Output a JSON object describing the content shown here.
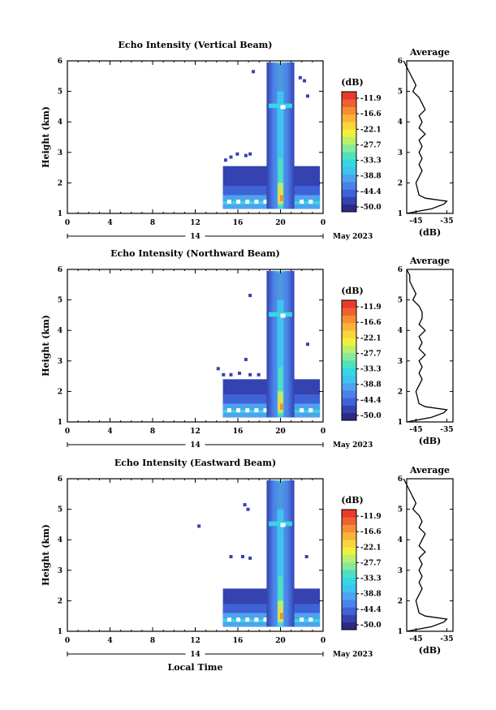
{
  "colors": {
    "colorbar": [
      "#2c2a86",
      "#3443b0",
      "#3f62d6",
      "#4c80ea",
      "#4ea3f0",
      "#3fc3ef",
      "#35d7e2",
      "#4fe0c0",
      "#86ea9a",
      "#bcef6a",
      "#eff03e",
      "#fad43c",
      "#f8b338",
      "#f48e34",
      "#f06030",
      "#e93b2b"
    ],
    "line": "#000000"
  },
  "colorbar": {
    "unit": "(dB)",
    "labels": [
      "-11.9",
      "-16.6",
      "-22.1",
      "-27.7",
      "-33.3",
      "-38.8",
      "-44.4",
      "-50.0"
    ]
  },
  "chart_data": [
    {
      "type": "heatmap",
      "title": "Echo Intensity (Vertical Beam)",
      "ylabel": "Height (km)",
      "xlabel": "",
      "x_ticks": [
        "0",
        "4",
        "8",
        "12",
        "16",
        "20",
        "0"
      ],
      "y_ticks": [
        "1",
        "2",
        "3",
        "4",
        "5",
        "6"
      ],
      "ylim": [
        1,
        6
      ],
      "day_label": "14",
      "month_label": "May 2023",
      "profile": {
        "title": "Average",
        "xlabel": "(dB)",
        "x_ticks": [
          "-45",
          "-35"
        ],
        "y_ticks": [
          "1",
          "2",
          "3",
          "4",
          "5",
          "6"
        ],
        "height_km": [
          1.0,
          1.15,
          1.3,
          1.4,
          1.5,
          1.6,
          1.8,
          2.0,
          2.2,
          2.4,
          2.6,
          2.8,
          3.0,
          3.2,
          3.4,
          3.6,
          3.8,
          4.0,
          4.2,
          4.4,
          4.6,
          4.8,
          5.0,
          5.2,
          5.4,
          5.6,
          5.8,
          6.0
        ],
        "db": [
          -48,
          -40,
          -36,
          -35,
          -42,
          -44,
          -44.5,
          -45,
          -44,
          -43,
          -44,
          -43,
          -44,
          -43,
          -44,
          -42,
          -44,
          -43,
          -44,
          -42,
          -43,
          -44,
          -46,
          -45,
          -46,
          -47,
          -48,
          -49
        ]
      }
    },
    {
      "type": "heatmap",
      "title": "Echo Intensity (Northward Beam)",
      "ylabel": "Height (km)",
      "xlabel": "",
      "x_ticks": [
        "0",
        "4",
        "8",
        "12",
        "16",
        "20",
        "0"
      ],
      "y_ticks": [
        "1",
        "2",
        "3",
        "4",
        "5",
        "6"
      ],
      "ylim": [
        1,
        6
      ],
      "day_label": "14",
      "month_label": "May 2023",
      "profile": {
        "title": "Average",
        "xlabel": "(dB)",
        "x_ticks": [
          "-45",
          "-35"
        ],
        "y_ticks": [
          "1",
          "2",
          "3",
          "4",
          "5",
          "6"
        ],
        "height_km": [
          1.0,
          1.15,
          1.3,
          1.4,
          1.5,
          1.6,
          1.8,
          2.0,
          2.2,
          2.4,
          2.6,
          2.8,
          3.0,
          3.2,
          3.4,
          3.6,
          3.8,
          4.0,
          4.2,
          4.4,
          4.6,
          4.8,
          5.0,
          5.2,
          5.4,
          5.6,
          5.8,
          6.0
        ],
        "db": [
          -48,
          -40,
          -36,
          -35,
          -42,
          -44,
          -44.5,
          -45,
          -44,
          -43,
          -44,
          -43,
          -44,
          -42,
          -44,
          -43,
          -44,
          -42,
          -44,
          -43,
          -43,
          -44,
          -46,
          -45,
          -46,
          -47,
          -47,
          -48
        ]
      }
    },
    {
      "type": "heatmap",
      "title": "Echo Intensity (Eastward Beam)",
      "ylabel": "Height (km)",
      "xlabel": "Local Time",
      "x_ticks": [
        "0",
        "4",
        "8",
        "12",
        "16",
        "20",
        "0"
      ],
      "y_ticks": [
        "1",
        "2",
        "3",
        "4",
        "5",
        "6"
      ],
      "ylim": [
        1,
        6
      ],
      "day_label": "14",
      "month_label": "May 2023",
      "profile": {
        "title": "Average",
        "xlabel": "(dB)",
        "x_ticks": [
          "-45",
          "-35"
        ],
        "y_ticks": [
          "1",
          "2",
          "3",
          "4",
          "5",
          "6"
        ],
        "height_km": [
          1.0,
          1.15,
          1.3,
          1.4,
          1.5,
          1.6,
          1.8,
          2.0,
          2.2,
          2.4,
          2.6,
          2.8,
          3.0,
          3.2,
          3.4,
          3.6,
          3.8,
          4.0,
          4.2,
          4.4,
          4.6,
          4.8,
          5.0,
          5.2,
          5.4,
          5.6,
          5.8,
          6.0
        ],
        "db": [
          -48,
          -40,
          -36,
          -35,
          -42,
          -44,
          -44.5,
          -45,
          -44,
          -43,
          -44,
          -43,
          -44,
          -43,
          -44,
          -42,
          -44,
          -43,
          -42,
          -44,
          -43,
          -44,
          -46,
          -45,
          -46,
          -47,
          -48,
          -49
        ]
      }
    }
  ]
}
